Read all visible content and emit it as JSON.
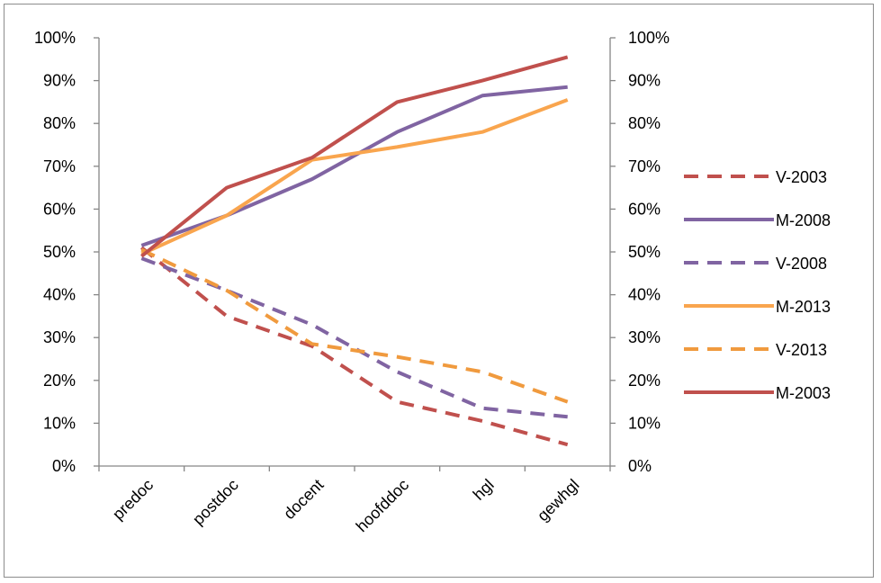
{
  "chart_data": {
    "type": "line",
    "title": "",
    "xlabel": "",
    "ylabel": "",
    "categories": [
      "predoc",
      "postdoc",
      "docent",
      "hoofddoc",
      "hgl",
      "gewhgl"
    ],
    "ylim": [
      0,
      100
    ],
    "yticks": [
      "0%",
      "10%",
      "20%",
      "30%",
      "40%",
      "50%",
      "60%",
      "70%",
      "80%",
      "90%",
      "100%"
    ],
    "secondary_yticks": [
      "0%",
      "10%",
      "20%",
      "30%",
      "40%",
      "50%",
      "60%",
      "70%",
      "80%",
      "90%",
      "100%"
    ],
    "grid": false,
    "legend_position": "right",
    "series": [
      {
        "name": "V-2003",
        "color": "#c0504d",
        "dashed": true,
        "values": [
          51,
          35,
          28,
          15,
          10.5,
          5
        ]
      },
      {
        "name": "M-2008",
        "color": "#8064a2",
        "dashed": false,
        "values": [
          51.5,
          58.5,
          67,
          78,
          86.5,
          88.5
        ]
      },
      {
        "name": "V-2008",
        "color": "#8064a2",
        "dashed": true,
        "values": [
          48.5,
          41,
          33,
          22,
          13.5,
          11.5
        ]
      },
      {
        "name": "M-2013",
        "color": "#f9a54e",
        "dashed": false,
        "values": [
          49.5,
          58.5,
          71.5,
          74.5,
          78,
          85.5
        ]
      },
      {
        "name": "V-2013",
        "color": "#f09a3e",
        "dashed": true,
        "values": [
          50.5,
          41,
          28.5,
          25.5,
          22,
          15
        ]
      },
      {
        "name": "M-2003",
        "color": "#c0504d",
        "dashed": false,
        "values": [
          49,
          65,
          72,
          85,
          90,
          95.5
        ]
      }
    ]
  }
}
